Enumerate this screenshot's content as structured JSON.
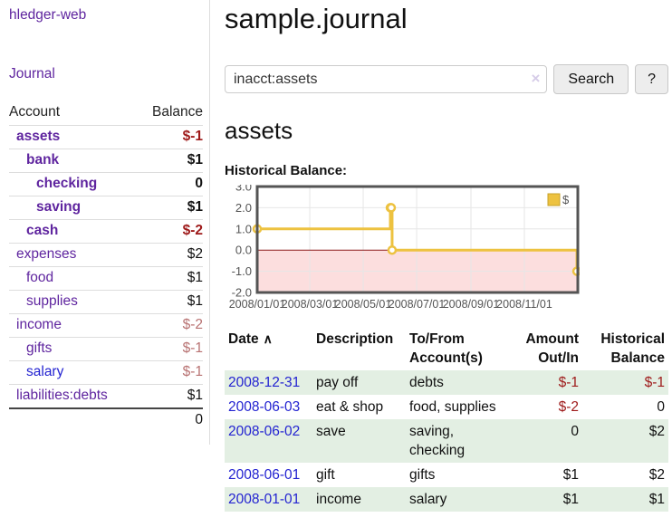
{
  "palette": {
    "purple_link": "#5f259f",
    "blue_link": "#2323d1",
    "negative_strong": "#9e1a1a",
    "negative_soft": "#b87272",
    "row_green": "#e3efe3",
    "chart_line_gold": "#edc240",
    "chart_negative_fill": "#fcdede",
    "chart_zero_line": "#8b1a1a",
    "chart_border": "#545454",
    "chart_grid": "#e6e6e6",
    "chart_tick_text": "#545454"
  },
  "sidebar": {
    "app_title": "hledger-web",
    "nav_journal": "Journal",
    "table_header": {
      "account": "Account",
      "balance": "Balance"
    },
    "accounts": [
      {
        "name": "assets",
        "balance": "$-1"
      },
      {
        "name": "bank",
        "balance": "$1"
      },
      {
        "name": "checking",
        "balance": "0"
      },
      {
        "name": "saving",
        "balance": "$1"
      },
      {
        "name": "cash",
        "balance": "$-2"
      },
      {
        "name": "expenses",
        "balance": "$2"
      },
      {
        "name": "food",
        "balance": "$1"
      },
      {
        "name": "supplies",
        "balance": "$1"
      },
      {
        "name": "income",
        "balance": "$-2"
      },
      {
        "name": "gifts",
        "balance": "$-1"
      },
      {
        "name": "salary",
        "balance": "$-1"
      },
      {
        "name": "liabilities:debts",
        "balance": "$1"
      }
    ],
    "total": "0"
  },
  "header": {
    "title": "sample.journal"
  },
  "search": {
    "value": "inacct:assets",
    "clear_icon": "×",
    "button_label": "Search",
    "help_label": "?"
  },
  "account_page": {
    "heading": "assets",
    "chart_label": "Historical Balance:"
  },
  "chart_data": {
    "type": "line",
    "steps": true,
    "series": [
      {
        "name": "$",
        "color": "#edc240",
        "points": [
          [
            "2008-01-01",
            1
          ],
          [
            "2008-06-01",
            2
          ],
          [
            "2008-06-02",
            2
          ],
          [
            "2008-06-03",
            0
          ],
          [
            "2008-12-31",
            -1
          ]
        ]
      }
    ],
    "x_range": [
      "2008-01-01",
      "2009-01-01"
    ],
    "x_tick_dates": [
      "2008-01-01",
      "2008-03-01",
      "2008-05-01",
      "2008-07-01",
      "2008-09-01",
      "2008-11-01"
    ],
    "x_tick_labels": [
      "2008/01/01",
      "2008/03/01",
      "2008/05/01",
      "2008/07/01",
      "2008/09/01",
      "2008/11/01"
    ],
    "y_ticks": [
      "3.0",
      "2.0",
      "1.0",
      "0.0",
      "-1.0",
      "-2.0"
    ],
    "ylim": [
      -2,
      3
    ],
    "grid": true,
    "negative_region": true,
    "legend": {
      "label": "$",
      "position": "top-right"
    }
  },
  "register": {
    "columns": {
      "date": "Date",
      "sort_icon": "∧",
      "description": "Description",
      "tofrom": "To/From\nAccount(s)",
      "amount": "Amount\nOut/In",
      "historical": "Historical\nBalance"
    },
    "rows": [
      {
        "date": "2008-12-31",
        "description": "pay off",
        "accounts": "debts",
        "amount": "$-1",
        "historical": "$-1"
      },
      {
        "date": "2008-06-03",
        "description": "eat & shop",
        "accounts": "food, supplies",
        "amount": "$-2",
        "historical": "0"
      },
      {
        "date": "2008-06-02",
        "description": "save",
        "accounts": "saving,\nchecking",
        "amount": "0",
        "historical": "$2"
      },
      {
        "date": "2008-06-01",
        "description": "gift",
        "accounts": "gifts",
        "amount": "$1",
        "historical": "$2"
      },
      {
        "date": "2008-01-01",
        "description": "income",
        "accounts": "salary",
        "amount": "$1",
        "historical": "$1"
      }
    ]
  }
}
